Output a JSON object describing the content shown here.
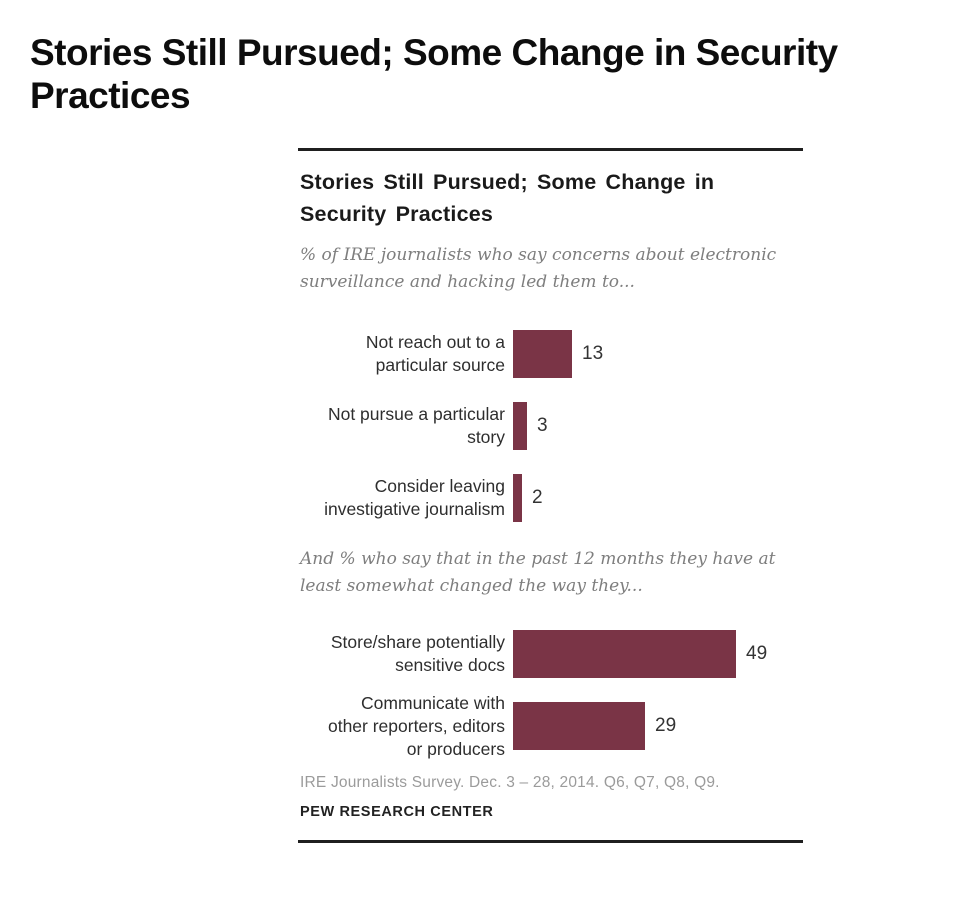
{
  "heading_lines": [
    "Stories Still Pursued; Some Change in Security",
    "Practices"
  ],
  "card": {
    "title_lines": [
      "Stories Still Pursued; Some Change in",
      "Security Practices"
    ],
    "source": "IRE Journalists Survey. Dec. 3 – 28, 2014. Q6, Q7, Q8, Q9.",
    "branding": "PEW RESEARCH CENTER"
  },
  "chart_data": {
    "type": "bar",
    "orientation": "horizontal",
    "title": "Stories Still Pursued; Some Change in Security Practices",
    "bar_color": "#7A3446",
    "xlim": [
      0,
      55
    ],
    "grid": false,
    "legend": false,
    "sections": [
      {
        "subtitle": "% of IRE journalists who say concerns about electronic surveillance and hacking led them to...",
        "subtitle_lines": [
          "% of IRE journalists who say concerns about electronic",
          "surveillance and hacking led them to..."
        ],
        "categories": [
          "Not reach out to a particular source",
          "Not pursue a particular story",
          "Consider leaving investigative journalism"
        ],
        "values": [
          13,
          3,
          2
        ],
        "bars": [
          {
            "label": "Not reach out to a particular source",
            "label_lines": [
              "Not reach out to a",
              "particular source"
            ],
            "value": 13
          },
          {
            "label": "Not pursue a particular story",
            "label_lines": [
              "Not pursue a particular",
              "story"
            ],
            "value": 3
          },
          {
            "label": "Consider leaving investigative journalism",
            "label_lines": [
              "Consider leaving",
              "investigative journalism"
            ],
            "value": 2
          }
        ]
      },
      {
        "subtitle": "And % who say that in the past 12 months they have at least somewhat changed the way they...",
        "subtitle_lines": [
          "And % who say that in the past 12 months they have at",
          "least somewhat changed the way they..."
        ],
        "categories": [
          "Store/share potentially sensitive docs",
          "Communicate with other reporters, editors or producers"
        ],
        "values": [
          49,
          29
        ],
        "bars": [
          {
            "label": "Store/share potentially sensitive docs",
            "label_lines": [
              "Store/share potentially",
              "sensitive docs"
            ],
            "value": 49
          },
          {
            "label": "Communicate with other reporters, editors or producers",
            "label_lines": [
              "Communicate with",
              "other reporters, editors",
              "or producers"
            ],
            "value": 29
          }
        ]
      }
    ]
  }
}
